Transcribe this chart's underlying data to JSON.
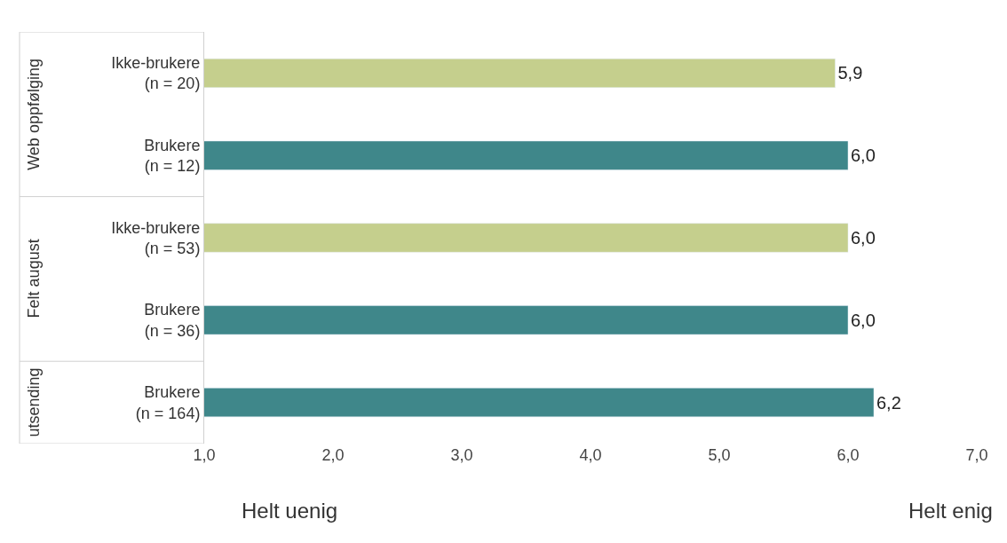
{
  "chart_data": {
    "type": "bar",
    "orientation": "horizontal",
    "categories": [
      "Ikke-brukere\n(n = 20)",
      "Brukere\n(n = 12)",
      "Ikke-brukere\n(n = 53)",
      "Brukere\n(n = 36)",
      "Brukere\n(n = 164)"
    ],
    "values": [
      5.9,
      6.0,
      6.0,
      6.0,
      6.2
    ],
    "value_labels": [
      "5,9",
      "6,0",
      "6,0",
      "6,0",
      "6,2"
    ],
    "colors": [
      "#c5cf8d",
      "#3f878a",
      "#c5cf8d",
      "#3f878a",
      "#3f878a"
    ],
    "xlim": [
      1,
      7
    ],
    "xticks": [
      {
        "value": 1,
        "label": "1,0"
      },
      {
        "value": 2,
        "label": "2,0"
      },
      {
        "value": 3,
        "label": "3,0"
      },
      {
        "value": 4,
        "label": "4,0"
      },
      {
        "value": 5,
        "label": "5,0"
      },
      {
        "value": 6,
        "label": "6,0"
      },
      {
        "value": 7,
        "label": "7,0"
      }
    ],
    "annotations": [
      "Web oppfølging",
      "Felt august",
      "utsending",
      "Helt uenig",
      "Helt enig"
    ]
  }
}
